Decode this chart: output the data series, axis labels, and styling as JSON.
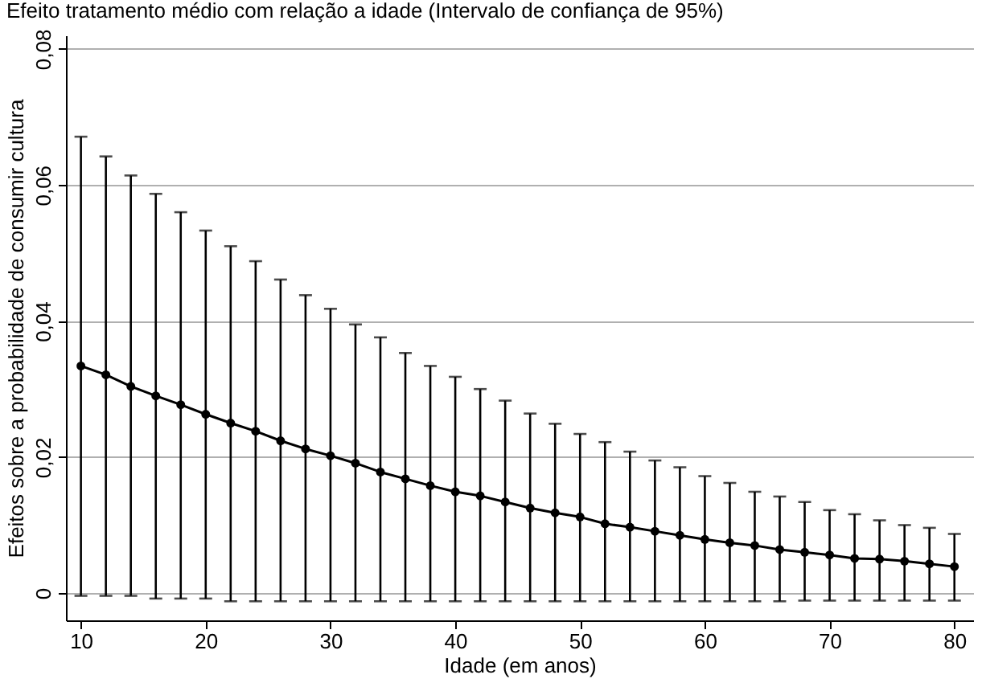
{
  "chart_data": {
    "type": "line",
    "title": "Efeito tratamento médio com relação a idade (Intervalo de confiança de 95%)",
    "xlabel": "Idade (em anos)",
    "ylabel": "Efeitos sobre a probabilidade de consumir cultura",
    "x": [
      10,
      12,
      14,
      16,
      18,
      20,
      22,
      24,
      26,
      28,
      30,
      32,
      34,
      36,
      38,
      40,
      42,
      44,
      46,
      48,
      50,
      52,
      54,
      56,
      58,
      60,
      62,
      64,
      66,
      68,
      70,
      72,
      74,
      76,
      78,
      80
    ],
    "series": [
      {
        "color": "#000000",
        "values": [
          0.0334,
          0.0321,
          0.0304,
          0.029,
          0.0277,
          0.0263,
          0.025,
          0.0238,
          0.0224,
          0.0212,
          0.0202,
          0.0191,
          0.0178,
          0.0168,
          0.0158,
          0.0149,
          0.0143,
          0.0134,
          0.0125,
          0.0118,
          0.0112,
          0.0102,
          0.0097,
          0.0091,
          0.0085,
          0.0079,
          0.0074,
          0.007,
          0.0064,
          0.006,
          0.0056,
          0.0051,
          0.005,
          0.0047,
          0.0043,
          0.0039
        ],
        "errors": [
          [
            -0.0004,
            0.0671
          ],
          [
            -0.0004,
            0.0642
          ],
          [
            -0.0004,
            0.0614
          ],
          [
            -0.0008,
            0.0587
          ],
          [
            -0.0008,
            0.056
          ],
          [
            -0.0008,
            0.0533
          ],
          [
            -0.0012,
            0.051
          ],
          [
            -0.0012,
            0.0488
          ],
          [
            -0.0012,
            0.0461
          ],
          [
            -0.0012,
            0.0438
          ],
          [
            -0.0012,
            0.0418
          ],
          [
            -0.0012,
            0.0395
          ],
          [
            -0.0012,
            0.0376
          ],
          [
            -0.0012,
            0.0353
          ],
          [
            -0.0012,
            0.0334
          ],
          [
            -0.0012,
            0.0318
          ],
          [
            -0.0012,
            0.03
          ],
          [
            -0.0012,
            0.0283
          ],
          [
            -0.0012,
            0.0264
          ],
          [
            -0.0012,
            0.0249
          ],
          [
            -0.0012,
            0.0234
          ],
          [
            -0.0012,
            0.0222
          ],
          [
            -0.0012,
            0.0208
          ],
          [
            -0.0012,
            0.0195
          ],
          [
            -0.0012,
            0.0185
          ],
          [
            -0.0012,
            0.0172
          ],
          [
            -0.0012,
            0.0162
          ],
          [
            -0.0012,
            0.0149
          ],
          [
            -0.0012,
            0.0142
          ],
          [
            -0.0011,
            0.0134
          ],
          [
            -0.0011,
            0.0122
          ],
          [
            -0.0011,
            0.0116
          ],
          [
            -0.0011,
            0.0107
          ],
          [
            -0.0011,
            0.01
          ],
          [
            -0.0011,
            0.0096
          ],
          [
            -0.0011,
            0.0087
          ]
        ]
      }
    ],
    "xlim": [
      8.8,
      81.5
    ],
    "xticks": [
      10,
      20,
      30,
      40,
      50,
      60,
      70,
      80
    ],
    "ylim": [
      -0.004,
      0.082
    ],
    "yticks": [
      0,
      {
        "value": 0.02,
        "label": "0,02"
      },
      {
        "value": 0.04,
        "label": "0,04"
      },
      {
        "value": 0.06,
        "label": "0,06"
      },
      {
        "value": 0.08,
        "label": "0,08"
      }
    ],
    "grid": "y",
    "marker": "circle",
    "line_style": "solid"
  }
}
